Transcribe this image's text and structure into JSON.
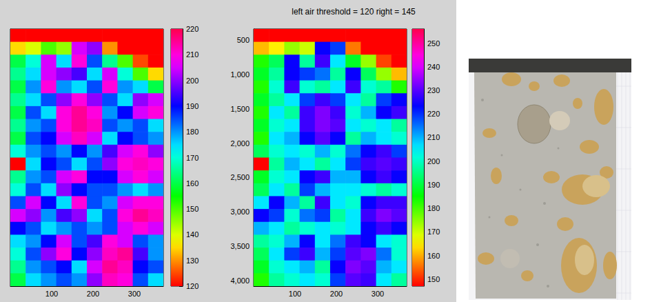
{
  "chart_data": [
    {
      "type": "heatmap",
      "x_edges": [
        0,
        37,
        74,
        111,
        148,
        185,
        222,
        259,
        296,
        333,
        370
      ],
      "y_edges": [
        340,
        527,
        714,
        901,
        1088,
        1275,
        1462,
        1649,
        1836,
        2023,
        2210,
        2397,
        2584,
        2771,
        2958,
        3145,
        3332,
        3519,
        3706,
        3893,
        4080
      ],
      "cells": [
        [
          120,
          120,
          120,
          120,
          120,
          120,
          120,
          120,
          120,
          120
        ],
        [
          135,
          140,
          150,
          145,
          205,
          200,
          130,
          120,
          120,
          120
        ],
        [
          160,
          170,
          205,
          175,
          210,
          185,
          165,
          150,
          125,
          120
        ],
        [
          165,
          175,
          205,
          200,
          195,
          175,
          205,
          170,
          150,
          135
        ],
        [
          160,
          180,
          210,
          180,
          175,
          185,
          210,
          180,
          175,
          160
        ],
        [
          165,
          175,
          185,
          200,
          210,
          200,
          185,
          175,
          200,
          205
        ],
        [
          160,
          185,
          175,
          210,
          215,
          210,
          180,
          190,
          205,
          210
        ],
        [
          165,
          180,
          185,
          210,
          215,
          212,
          185,
          180,
          185,
          175
        ],
        [
          160,
          185,
          190,
          205,
          212,
          205,
          175,
          190,
          185,
          180
        ],
        [
          170,
          180,
          185,
          180,
          190,
          180,
          195,
          205,
          210,
          200
        ],
        [
          120,
          175,
          190,
          185,
          175,
          185,
          200,
          210,
          212,
          210
        ],
        [
          165,
          180,
          185,
          205,
          210,
          190,
          190,
          205,
          210,
          205
        ],
        [
          170,
          185,
          175,
          200,
          190,
          185,
          185,
          180,
          175,
          180
        ],
        [
          185,
          205,
          190,
          175,
          210,
          185,
          180,
          205,
          210,
          210
        ],
        [
          205,
          200,
          180,
          195,
          200,
          175,
          185,
          210,
          215,
          212
        ],
        [
          190,
          185,
          175,
          180,
          185,
          180,
          185,
          205,
          210,
          205
        ],
        [
          175,
          180,
          190,
          205,
          185,
          195,
          210,
          205,
          185,
          180
        ],
        [
          170,
          185,
          200,
          210,
          190,
          200,
          212,
          215,
          195,
          180
        ],
        [
          165,
          180,
          185,
          190,
          175,
          205,
          215,
          212,
          190,
          185
        ],
        [
          160,
          175,
          180,
          185,
          180,
          200,
          212,
          210,
          185,
          175
        ]
      ],
      "xlim": [
        0,
        370
      ],
      "ylim": [
        340,
        4080
      ],
      "xticks": [
        100,
        200,
        300
      ],
      "tick_labels": "x",
      "colorbar": {
        "range": [
          120,
          220
        ],
        "ticks": [
          120,
          130,
          140,
          150,
          160,
          170,
          180,
          190,
          200,
          210,
          220
        ]
      }
    },
    {
      "type": "heatmap",
      "title": "left air threshold = 120 right = 145",
      "x_edges": [
        0,
        37,
        74,
        111,
        148,
        185,
        222,
        259,
        296,
        333,
        370
      ],
      "y_edges": [
        340,
        527,
        714,
        901,
        1088,
        1275,
        1462,
        1649,
        1836,
        2023,
        2210,
        2397,
        2584,
        2771,
        2958,
        3145,
        3332,
        3519,
        3706,
        3893,
        4080
      ],
      "cells": [
        [
          147,
          147,
          147,
          147,
          147,
          147,
          147,
          147,
          147,
          147
        ],
        [
          161,
          165,
          174,
          170,
          224,
          219,
          156,
          147,
          147,
          147
        ],
        [
          183,
          192,
          224,
          197,
          228,
          206,
          188,
          174,
          152,
          147
        ],
        [
          188,
          197,
          224,
          219,
          215,
          197,
          224,
          192,
          174,
          161
        ],
        [
          183,
          201,
          228,
          201,
          197,
          206,
          228,
          201,
          197,
          183
        ],
        [
          188,
          197,
          206,
          219,
          228,
          219,
          206,
          197,
          219,
          224
        ],
        [
          183,
          206,
          197,
          228,
          233,
          228,
          201,
          210,
          224,
          228
        ],
        [
          188,
          201,
          206,
          228,
          233,
          230,
          206,
          201,
          206,
          197
        ],
        [
          183,
          206,
          210,
          224,
          230,
          224,
          197,
          210,
          206,
          201
        ],
        [
          192,
          201,
          206,
          201,
          210,
          201,
          215,
          224,
          228,
          219
        ],
        [
          147,
          197,
          210,
          206,
          197,
          206,
          219,
          228,
          230,
          228
        ],
        [
          188,
          201,
          206,
          224,
          228,
          210,
          210,
          224,
          228,
          224
        ],
        [
          192,
          206,
          197,
          219,
          210,
          206,
          206,
          201,
          197,
          201
        ],
        [
          206,
          224,
          210,
          197,
          228,
          206,
          201,
          224,
          228,
          228
        ],
        [
          224,
          219,
          201,
          215,
          219,
          197,
          206,
          228,
          233,
          230
        ],
        [
          210,
          206,
          197,
          201,
          206,
          201,
          206,
          224,
          228,
          224
        ],
        [
          197,
          201,
          210,
          224,
          206,
          215,
          228,
          224,
          206,
          201
        ],
        [
          192,
          206,
          219,
          228,
          210,
          219,
          230,
          233,
          215,
          201
        ],
        [
          188,
          201,
          206,
          210,
          197,
          224,
          233,
          230,
          210,
          206
        ],
        [
          183,
          197,
          201,
          206,
          201,
          219,
          230,
          228,
          206,
          197
        ]
      ],
      "xlim": [
        0,
        370
      ],
      "ylim": [
        340,
        4080
      ],
      "xticks": [
        100,
        200,
        300
      ],
      "yticks": [
        500,
        1000,
        1500,
        2000,
        2500,
        3000,
        3500,
        4000
      ],
      "tick_labels": true,
      "colorbar": {
        "range": [
          147,
          256
        ],
        "ticks": [
          150,
          160,
          170,
          180,
          190,
          200,
          210,
          220,
          230,
          240,
          250
        ]
      }
    }
  ]
}
